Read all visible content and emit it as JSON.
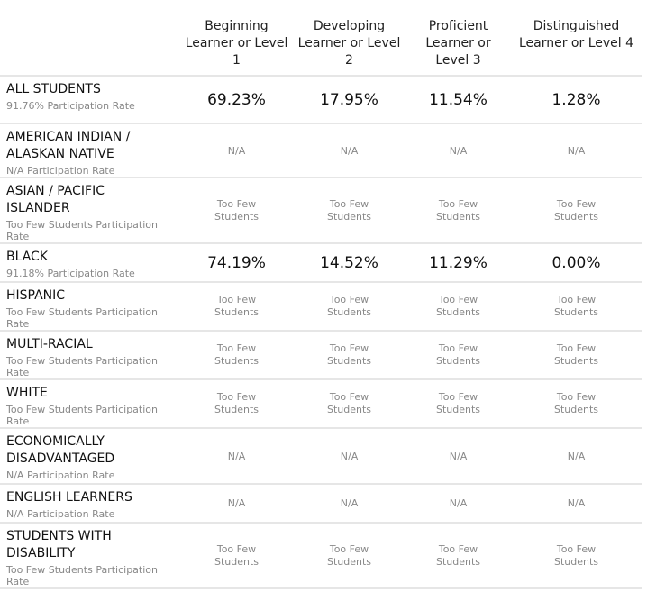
{
  "headers": [
    "Beginning Learner or Level 1",
    "Developing Learner or Level 2",
    "Proficient Learner or Level 3",
    "Distinguished Learner or Level 4"
  ],
  "rows": [
    {
      "group": "ALL STUDENTS",
      "rate": "91.76% Participation Rate",
      "values": [
        "69.23%",
        "17.95%",
        "11.54%",
        "1.28%"
      ]
    },
    {
      "group": "AMERICAN INDIAN / ALASKAN NATIVE",
      "rate": "N/A Participation Rate",
      "values": [
        "N/A",
        "N/A",
        "N/A",
        "N/A"
      ]
    },
    {
      "group": "ASIAN / PACIFIC ISLANDER",
      "rate": "Too Few Students Participation Rate",
      "values": [
        "Too Few Students",
        "Too Few Students",
        "Too Few Students",
        "Too Few Students"
      ]
    },
    {
      "group": "BLACK",
      "rate": "91.18% Participation Rate",
      "values": [
        "74.19%",
        "14.52%",
        "11.29%",
        "0.00%"
      ]
    },
    {
      "group": "HISPANIC",
      "rate": "Too Few Students Participation Rate",
      "values": [
        "Too Few Students",
        "Too Few Students",
        "Too Few Students",
        "Too Few Students"
      ]
    },
    {
      "group": "MULTI-RACIAL",
      "rate": "Too Few Students Participation Rate",
      "values": [
        "Too Few Students",
        "Too Few Students",
        "Too Few Students",
        "Too Few Students"
      ]
    },
    {
      "group": "WHITE",
      "rate": "Too Few Students Participation Rate",
      "values": [
        "Too Few Students",
        "Too Few Students",
        "Too Few Students",
        "Too Few Students"
      ]
    },
    {
      "group": "ECONOMICALLY DISADVANTAGED",
      "rate": "N/A Participation Rate",
      "values": [
        "N/A",
        "N/A",
        "N/A",
        "N/A"
      ]
    },
    {
      "group": "ENGLISH LEARNERS",
      "rate": "N/A Participation Rate",
      "values": [
        "N/A",
        "N/A",
        "N/A",
        "N/A"
      ]
    },
    {
      "group": "STUDENTS WITH DISABILITY",
      "rate": "Too Few Students Participation Rate",
      "values": [
        "Too Few Students",
        "Too Few Students",
        "Too Few Students",
        "Too Few Students"
      ]
    }
  ]
}
